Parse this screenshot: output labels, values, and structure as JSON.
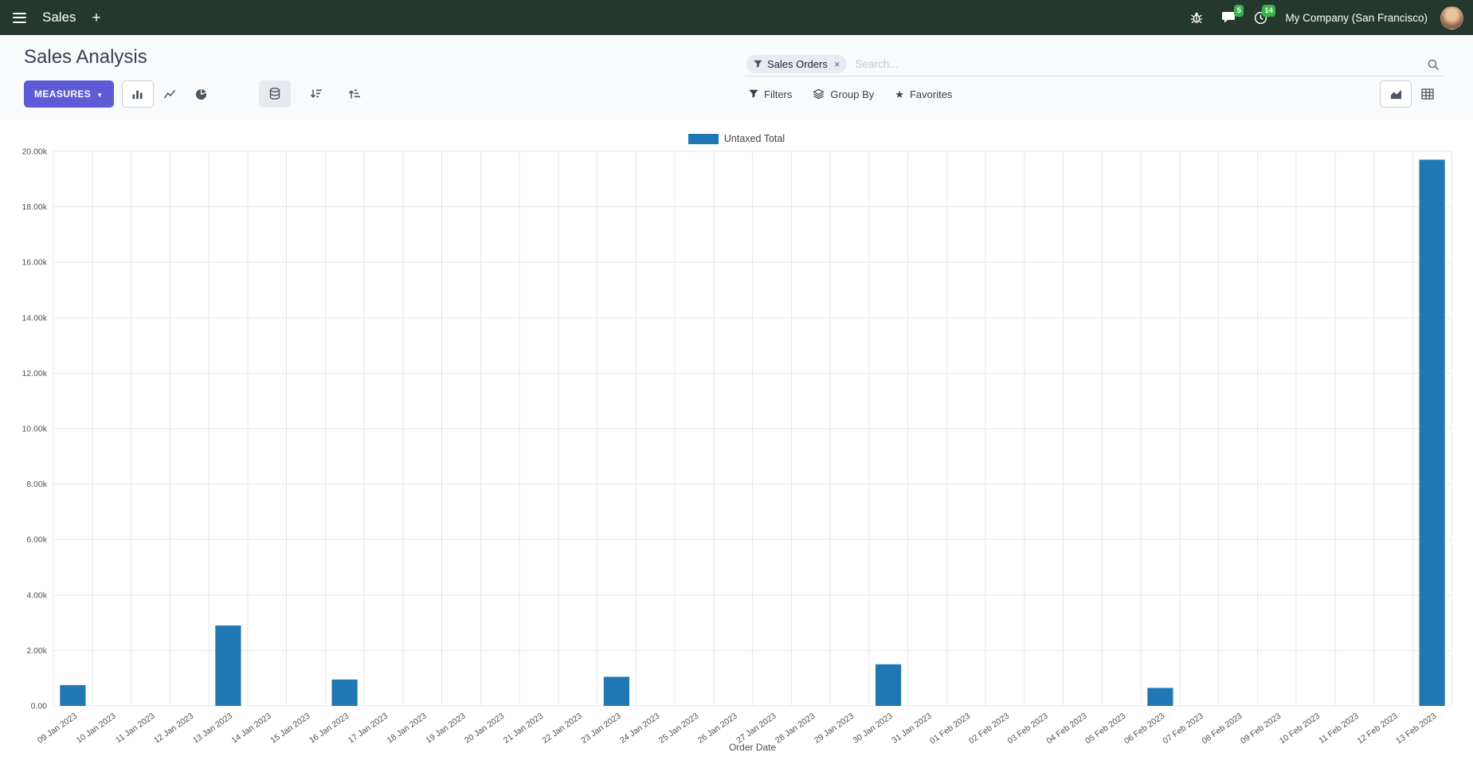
{
  "colors": {
    "navbar_bg": "#25382e",
    "accent": "#5d5bd5",
    "badge": "#38b44a",
    "bar": "#1f77b4"
  },
  "icons": {
    "close": "×",
    "star": "★",
    "caret_down": "▼"
  },
  "navbar": {
    "app_name": "Sales",
    "plus_label": "+",
    "chat_badge": "5",
    "activity_badge": "14",
    "company": "My Company (San Francisco)"
  },
  "control_panel": {
    "title": "Sales Analysis",
    "measures_label": "MEASURES",
    "filters_label": "Filters",
    "group_by_label": "Group By",
    "favorites_label": "Favorites",
    "search": {
      "facet": "Sales Orders",
      "placeholder": "Search..."
    }
  },
  "chart_data": {
    "type": "bar",
    "title": "",
    "legend": [
      "Untaxed Total"
    ],
    "series_name": "Untaxed Total",
    "series_color": "#1f77b4",
    "xlabel": "Order Date",
    "ylabel": "",
    "ylim": [
      0,
      20000
    ],
    "ytick_step": 2000,
    "grid": true,
    "legend_position": "top-center",
    "categories": [
      "09 Jan 2023",
      "10 Jan 2023",
      "11 Jan 2023",
      "12 Jan 2023",
      "13 Jan 2023",
      "14 Jan 2023",
      "15 Jan 2023",
      "16 Jan 2023",
      "17 Jan 2023",
      "18 Jan 2023",
      "19 Jan 2023",
      "20 Jan 2023",
      "21 Jan 2023",
      "22 Jan 2023",
      "23 Jan 2023",
      "24 Jan 2023",
      "25 Jan 2023",
      "26 Jan 2023",
      "27 Jan 2023",
      "28 Jan 2023",
      "29 Jan 2023",
      "30 Jan 2023",
      "31 Jan 2023",
      "01 Feb 2023",
      "02 Feb 2023",
      "03 Feb 2023",
      "04 Feb 2023",
      "05 Feb 2023",
      "06 Feb 2023",
      "07 Feb 2023",
      "08 Feb 2023",
      "09 Feb 2023",
      "10 Feb 2023",
      "11 Feb 2023",
      "12 Feb 2023",
      "13 Feb 2023"
    ],
    "values": [
      750,
      0,
      0,
      0,
      2900,
      0,
      0,
      950,
      0,
      0,
      0,
      0,
      0,
      0,
      1050,
      0,
      0,
      0,
      0,
      0,
      0,
      1500,
      0,
      0,
      0,
      0,
      0,
      0,
      650,
      0,
      0,
      0,
      0,
      0,
      0,
      19700
    ]
  }
}
